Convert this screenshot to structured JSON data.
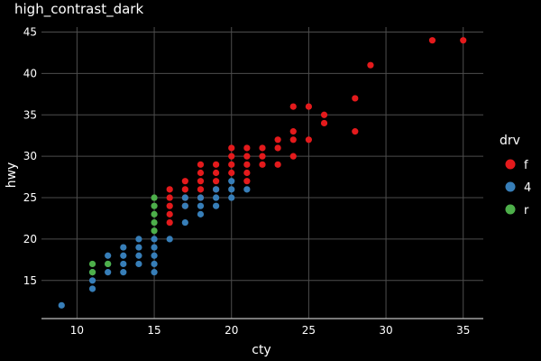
{
  "chart_data": {
    "type": "scatter",
    "title": "high_contrast_dark",
    "xlabel": "cty",
    "ylabel": "hwy",
    "xlim": [
      7.7,
      36.3
    ],
    "ylim": [
      10.4,
      45.6
    ],
    "xticks": [
      10,
      15,
      20,
      25,
      30,
      35
    ],
    "yticks": [
      15,
      20,
      25,
      30,
      35,
      40,
      45
    ],
    "grid": true,
    "legend": {
      "title": "drv",
      "position": "right"
    },
    "colors": {
      "background": "#000000",
      "grid": "#4d4d4d",
      "axis": "#bfbfbf",
      "text": "#ffffff"
    },
    "series": [
      {
        "name": "f",
        "color": "#e41a1c",
        "points": [
          [
            35,
            44
          ],
          [
            33,
            44
          ],
          [
            29,
            41
          ],
          [
            28,
            37
          ],
          [
            28,
            33
          ],
          [
            26,
            35
          ],
          [
            26,
            34
          ],
          [
            25,
            36
          ],
          [
            25,
            32
          ],
          [
            24,
            36
          ],
          [
            24,
            33
          ],
          [
            24,
            32
          ],
          [
            24,
            30
          ],
          [
            23,
            32
          ],
          [
            23,
            31
          ],
          [
            23,
            29
          ],
          [
            22,
            31
          ],
          [
            22,
            30
          ],
          [
            22,
            29
          ],
          [
            21,
            31
          ],
          [
            21,
            30
          ],
          [
            21,
            29
          ],
          [
            21,
            28
          ],
          [
            21,
            27
          ],
          [
            20,
            31
          ],
          [
            20,
            30
          ],
          [
            20,
            29
          ],
          [
            20,
            28
          ],
          [
            19,
            29
          ],
          [
            19,
            28
          ],
          [
            19,
            27
          ],
          [
            19,
            26
          ],
          [
            18,
            29
          ],
          [
            18,
            28
          ],
          [
            18,
            27
          ],
          [
            18,
            26
          ],
          [
            18,
            25
          ],
          [
            17,
            27
          ],
          [
            17,
            26
          ],
          [
            17,
            25
          ],
          [
            17,
            24
          ],
          [
            16,
            26
          ],
          [
            16,
            25
          ],
          [
            16,
            24
          ],
          [
            16,
            23
          ],
          [
            16,
            22
          ]
        ]
      },
      {
        "name": "4",
        "color": "#377eb8",
        "points": [
          [
            21,
            26
          ],
          [
            20,
            27
          ],
          [
            20,
            26
          ],
          [
            20,
            25
          ],
          [
            19,
            26
          ],
          [
            19,
            25
          ],
          [
            19,
            24
          ],
          [
            18,
            25
          ],
          [
            18,
            24
          ],
          [
            18,
            23
          ],
          [
            17,
            25
          ],
          [
            17,
            24
          ],
          [
            17,
            22
          ],
          [
            16,
            20
          ],
          [
            15,
            20
          ],
          [
            15,
            19
          ],
          [
            15,
            18
          ],
          [
            15,
            17
          ],
          [
            15,
            16
          ],
          [
            14,
            20
          ],
          [
            14,
            19
          ],
          [
            14,
            18
          ],
          [
            14,
            17
          ],
          [
            13,
            19
          ],
          [
            13,
            18
          ],
          [
            13,
            17
          ],
          [
            13,
            16
          ],
          [
            12,
            18
          ],
          [
            12,
            17
          ],
          [
            12,
            16
          ],
          [
            11,
            16
          ],
          [
            11,
            15
          ],
          [
            11,
            14
          ],
          [
            9,
            12
          ]
        ]
      },
      {
        "name": "r",
        "color": "#4daf4a",
        "points": [
          [
            15,
            25
          ],
          [
            15,
            24
          ],
          [
            15,
            23
          ],
          [
            15,
            22
          ],
          [
            15,
            21
          ],
          [
            12,
            17
          ],
          [
            11,
            17
          ],
          [
            11,
            16
          ]
        ]
      }
    ]
  }
}
